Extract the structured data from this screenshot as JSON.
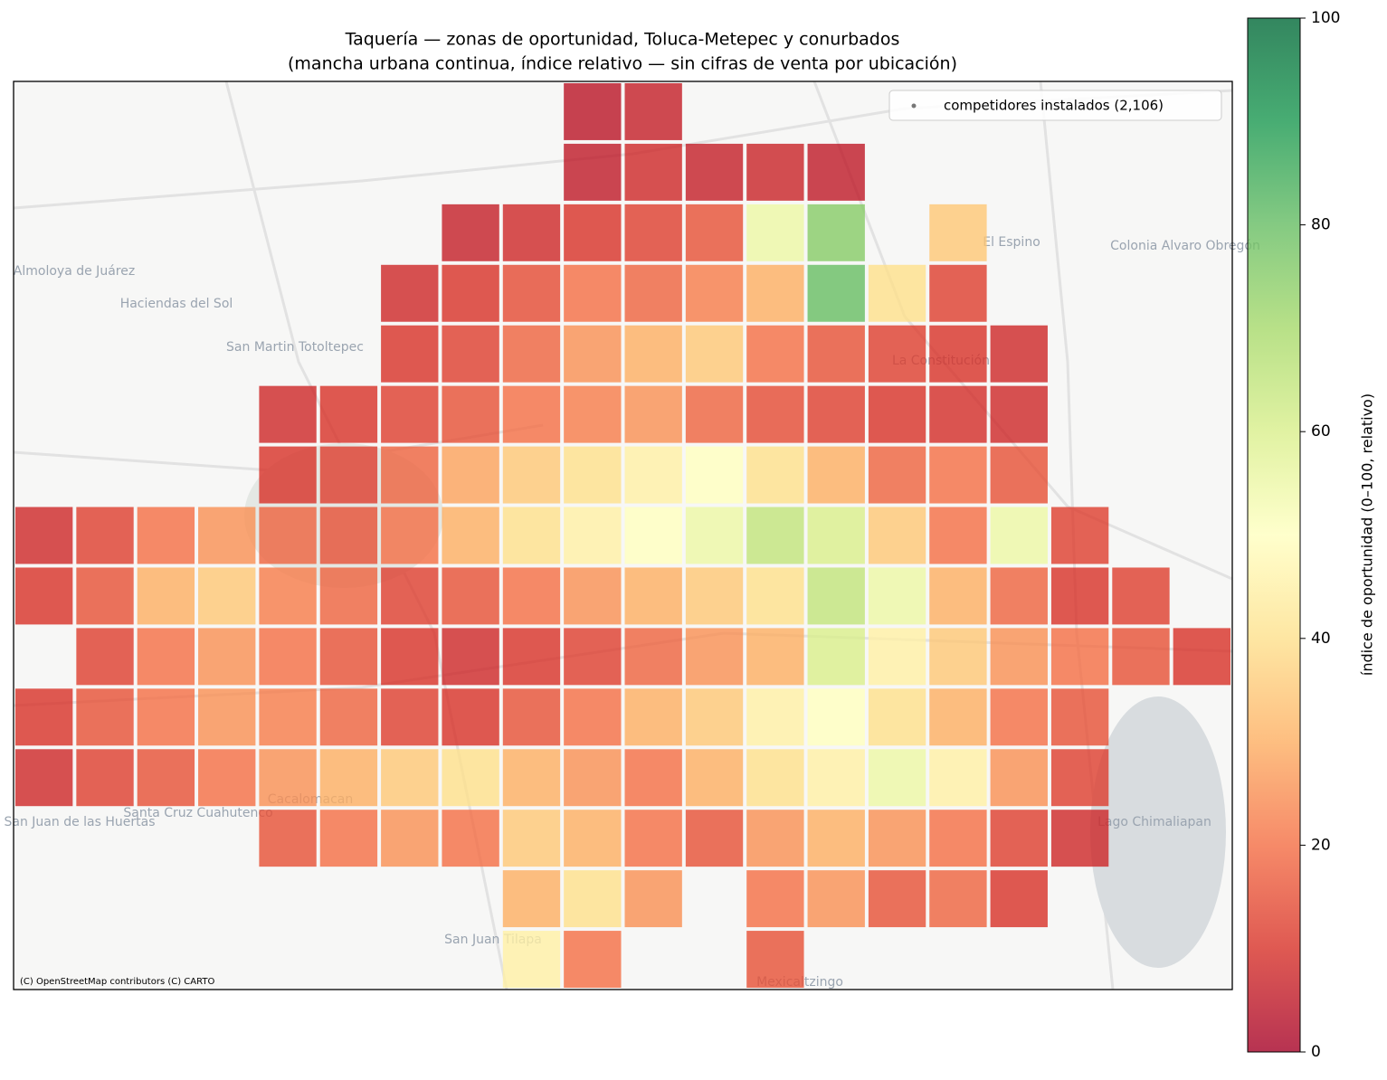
{
  "chart_data": {
    "type": "heatgrid",
    "title": "Taquería — zonas de oportunidad, Toluca-Metepec y conurbados",
    "subtitle": "(mancha urbana continua, índice relativo — sin cifras de venta por ubicación)",
    "legend": {
      "label": "competidores instalados (2,106)",
      "color": "#777777",
      "position": "upper right"
    },
    "colorbar_label": "índice de oportunidad (0–100, relativo)",
    "clim": [
      0,
      100
    ],
    "cticks": [
      0,
      20,
      40,
      60,
      80,
      100
    ],
    "colormap": [
      "#a50026",
      "#d73027",
      "#f46d43",
      "#fdae61",
      "#fee08b",
      "#ffffbf",
      "#d9ef8b",
      "#a6d96a",
      "#66bd63",
      "#1a9850",
      "#006837"
    ],
    "grid_values": [
      [
        null,
        null,
        null,
        null,
        null,
        null,
        null,
        null,
        null,
        4,
        6,
        null,
        null,
        null,
        null,
        null,
        null,
        null,
        null,
        null
      ],
      [
        null,
        null,
        null,
        null,
        null,
        null,
        null,
        null,
        null,
        5,
        8,
        6,
        7,
        5,
        null,
        null,
        null,
        null,
        null,
        null
      ],
      [
        null,
        null,
        null,
        null,
        null,
        null,
        null,
        6,
        8,
        10,
        12,
        15,
        55,
        75,
        null,
        35,
        null,
        null,
        null,
        null
      ],
      [
        null,
        null,
        null,
        null,
        null,
        null,
        8,
        10,
        14,
        20,
        18,
        22,
        30,
        80,
        40,
        12,
        null,
        null,
        null,
        null
      ],
      [
        null,
        null,
        null,
        null,
        null,
        null,
        10,
        12,
        18,
        25,
        30,
        35,
        20,
        15,
        12,
        10,
        8,
        null,
        null,
        null
      ],
      [
        null,
        null,
        null,
        null,
        8,
        10,
        12,
        15,
        20,
        22,
        25,
        18,
        14,
        12,
        10,
        9,
        8,
        null,
        null,
        null
      ],
      [
        null,
        null,
        null,
        null,
        10,
        12,
        18,
        28,
        35,
        40,
        45,
        50,
        40,
        30,
        18,
        20,
        15,
        null,
        null,
        null
      ],
      [
        8,
        12,
        20,
        25,
        18,
        15,
        20,
        30,
        40,
        45,
        50,
        55,
        65,
        60,
        35,
        20,
        55,
        12,
        null,
        null
      ],
      [
        10,
        15,
        30,
        35,
        22,
        18,
        12,
        15,
        20,
        25,
        30,
        35,
        40,
        65,
        55,
        30,
        18,
        10,
        12,
        null
      ],
      [
        null,
        12,
        20,
        25,
        20,
        15,
        10,
        8,
        10,
        12,
        18,
        25,
        30,
        60,
        45,
        35,
        25,
        20,
        15,
        10
      ],
      [
        10,
        15,
        20,
        25,
        22,
        18,
        12,
        10,
        15,
        20,
        30,
        35,
        45,
        50,
        40,
        30,
        20,
        15,
        null,
        null
      ],
      [
        8,
        12,
        15,
        20,
        25,
        30,
        35,
        40,
        30,
        25,
        20,
        30,
        40,
        45,
        55,
        45,
        25,
        12,
        null,
        null
      ],
      [
        null,
        null,
        null,
        null,
        15,
        20,
        25,
        20,
        35,
        30,
        20,
        15,
        25,
        30,
        25,
        20,
        12,
        8,
        null,
        null
      ],
      [
        null,
        null,
        null,
        null,
        null,
        null,
        null,
        null,
        30,
        40,
        25,
        null,
        20,
        25,
        15,
        18,
        10,
        null,
        null,
        null
      ],
      [
        null,
        null,
        null,
        null,
        null,
        null,
        null,
        null,
        45,
        20,
        null,
        null,
        15,
        null,
        null,
        null,
        null,
        null,
        null,
        null
      ]
    ],
    "place_labels": [
      "Almoloya de Juárez",
      "Haciendas del Sol",
      "San Martin Totoltepec",
      "El Espino",
      "Colonia Alvaro Obregón",
      "La Constitución",
      "San Juan de las Huertas",
      "Santa Cruz Cuahutenco",
      "Cacalomacan",
      "San Juan Tilapa",
      "Mexicaltzingo",
      "Lago Chimaliapan"
    ],
    "attribution": "(C) OpenStreetMap contributors (C) CARTO"
  }
}
